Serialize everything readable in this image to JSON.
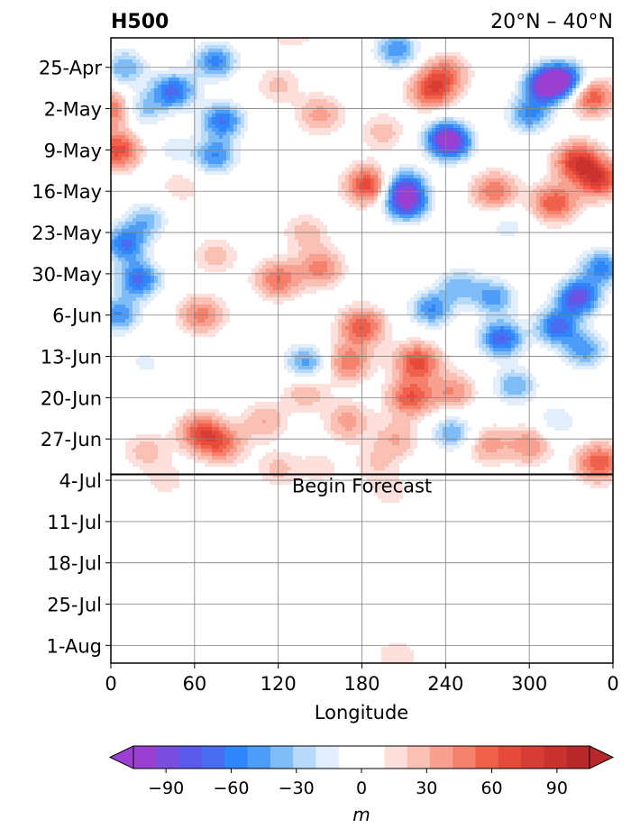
{
  "chart_data": {
    "type": "heatmap",
    "title_left": "H500",
    "title_right": "20°N – 40°N",
    "xlabel": "Longitude",
    "ylabel": "",
    "x_ticks": [
      "0",
      "60",
      "120",
      "180",
      "240",
      "300",
      "0"
    ],
    "x_tick_values": [
      0,
      60,
      120,
      180,
      240,
      300,
      360
    ],
    "xlim": [
      0,
      360
    ],
    "y_ticks": [
      "25-Apr",
      "2-May",
      "9-May",
      "16-May",
      "23-May",
      "30-May",
      "6-Jun",
      "13-Jun",
      "20-Jun",
      "27-Jun",
      "4-Jul",
      "11-Jul",
      "18-Jul",
      "25-Jul",
      "1-Aug"
    ],
    "ylim": [
      "20-Apr",
      "4-Aug"
    ],
    "y_axis_inverted": true,
    "grid": true,
    "annotation": {
      "text": "Begin Forecast",
      "date": "3-Jul",
      "longitude": 180
    },
    "colorbar": {
      "label": "m",
      "tick_labels": [
        "−90",
        "−60",
        "−30",
        "0",
        "30",
        "60",
        "90"
      ],
      "tick_values": [
        -90,
        -60,
        -30,
        0,
        30,
        60,
        90
      ],
      "range": [
        -105,
        105
      ],
      "step": 10,
      "extend": "both",
      "colors": [
        "#9b3fd1",
        "#7a4fe0",
        "#5a5be8",
        "#4a6df0",
        "#2f86fb",
        "#4d9cf8",
        "#7fbdf9",
        "#b7dafa",
        "#e3eefd",
        "#ffffff",
        "#ffffff",
        "#fde0dc",
        "#fbc0b4",
        "#f8a191",
        "#f5806b",
        "#f1604a",
        "#e54a3a",
        "#d73d34",
        "#c9322e",
        "#b8282a"
      ]
    },
    "anomaly_centers": [
      {
        "lon": 10,
        "date": "25-Apr",
        "value": -45
      },
      {
        "lon": 22,
        "date": "2-May",
        "value": -40
      },
      {
        "lon": 45,
        "date": "29-Apr",
        "value": -70
      },
      {
        "lon": 75,
        "date": "24-Apr",
        "value": -60
      },
      {
        "lon": 80,
        "date": "4-May",
        "value": -65
      },
      {
        "lon": 75,
        "date": "10-May",
        "value": -55
      },
      {
        "lon": 45,
        "date": "9-May",
        "value": -20
      },
      {
        "lon": 2,
        "date": "2-May",
        "value": 50
      },
      {
        "lon": 5,
        "date": "9-May",
        "value": 60
      },
      {
        "lon": 10,
        "date": "25-May",
        "value": -65
      },
      {
        "lon": 20,
        "date": "31-May",
        "value": -70
      },
      {
        "lon": 5,
        "date": "6-Jun",
        "value": -55
      },
      {
        "lon": 25,
        "date": "21-May",
        "value": -40
      },
      {
        "lon": 75,
        "date": "27-May",
        "value": 20
      },
      {
        "lon": 65,
        "date": "6-Jun",
        "value": 40
      },
      {
        "lon": 50,
        "date": "15-May",
        "value": 15
      },
      {
        "lon": 130,
        "date": "18-Apr",
        "value": 25
      },
      {
        "lon": 140,
        "date": "23-May",
        "value": 20
      },
      {
        "lon": 150,
        "date": "3-May",
        "value": 30
      },
      {
        "lon": 120,
        "date": "31-May",
        "value": 45
      },
      {
        "lon": 150,
        "date": "29-May",
        "value": 40
      },
      {
        "lon": 180,
        "date": "8-Jun",
        "value": 55
      },
      {
        "lon": 170,
        "date": "14-Jun",
        "value": 45
      },
      {
        "lon": 140,
        "date": "19-Jun",
        "value": 25
      },
      {
        "lon": 120,
        "date": "28-Apr",
        "value": 18
      },
      {
        "lon": 195,
        "date": "6-May",
        "value": 20
      },
      {
        "lon": 185,
        "date": "15-May",
        "value": 65
      },
      {
        "lon": 205,
        "date": "22-Apr",
        "value": -55
      },
      {
        "lon": 210,
        "date": "15-May",
        "value": -60
      },
      {
        "lon": 212,
        "date": "18-May",
        "value": -85
      },
      {
        "lon": 240,
        "date": "7-May",
        "value": -70
      },
      {
        "lon": 245,
        "date": "8-May",
        "value": -50
      },
      {
        "lon": 230,
        "date": "29-Apr",
        "value": 55
      },
      {
        "lon": 240,
        "date": "26-Apr",
        "value": 40
      },
      {
        "lon": 230,
        "date": "5-Jun",
        "value": -55
      },
      {
        "lon": 250,
        "date": "1-Jun",
        "value": -40
      },
      {
        "lon": 220,
        "date": "14-Jun",
        "value": 60
      },
      {
        "lon": 215,
        "date": "20-Jun",
        "value": 55
      },
      {
        "lon": 245,
        "date": "19-Jun",
        "value": 35
      },
      {
        "lon": 245,
        "date": "26-Jun",
        "value": -45
      },
      {
        "lon": 205,
        "date": "27-Jun",
        "value": 25
      },
      {
        "lon": 170,
        "date": "24-Jun",
        "value": 30
      },
      {
        "lon": 110,
        "date": "24-Jun",
        "value": 25
      },
      {
        "lon": 65,
        "date": "26-Jun",
        "value": 55
      },
      {
        "lon": 80,
        "date": "28-Jun",
        "value": 40
      },
      {
        "lon": 25,
        "date": "29-Jun",
        "value": 20
      },
      {
        "lon": 120,
        "date": "2-Jul",
        "value": 18
      },
      {
        "lon": 140,
        "date": "14-Jun",
        "value": -50
      },
      {
        "lon": 275,
        "date": "16-May",
        "value": 45
      },
      {
        "lon": 300,
        "date": "3-May",
        "value": -55
      },
      {
        "lon": 312,
        "date": "28-Apr",
        "value": -95
      },
      {
        "lon": 325,
        "date": "27-Apr",
        "value": -75
      },
      {
        "lon": 345,
        "date": "30-Apr",
        "value": 55
      },
      {
        "lon": 335,
        "date": "11-May",
        "value": 70
      },
      {
        "lon": 350,
        "date": "14-May",
        "value": 65
      },
      {
        "lon": 318,
        "date": "18-May",
        "value": 55
      },
      {
        "lon": 352,
        "date": "29-May",
        "value": -60
      },
      {
        "lon": 335,
        "date": "3-Jun",
        "value": -85
      },
      {
        "lon": 320,
        "date": "8-Jun",
        "value": -70
      },
      {
        "lon": 340,
        "date": "12-Jun",
        "value": -50
      },
      {
        "lon": 280,
        "date": "10-Jun",
        "value": -75
      },
      {
        "lon": 275,
        "date": "3-Jun",
        "value": -50
      },
      {
        "lon": 290,
        "date": "18-Jun",
        "value": -45
      },
      {
        "lon": 300,
        "date": "28-Jun",
        "value": 35
      },
      {
        "lon": 350,
        "date": "1-Jul",
        "value": 55
      },
      {
        "lon": 270,
        "date": "28-Jun",
        "value": 30
      },
      {
        "lon": 320,
        "date": "24-Jun",
        "value": -25
      },
      {
        "lon": 190,
        "date": "1-Jul",
        "value": 15
      },
      {
        "lon": 150,
        "date": "2-Jul",
        "value": 12
      },
      {
        "lon": 40,
        "date": "4-Jul",
        "value": 12
      },
      {
        "lon": 200,
        "date": "6-Jul",
        "value": 12
      },
      {
        "lon": 205,
        "date": "3-Aug",
        "value": 15
      },
      {
        "lon": 285,
        "date": "22-May",
        "value": -20
      },
      {
        "lon": 25,
        "date": "14-Jun",
        "value": -18
      }
    ]
  }
}
